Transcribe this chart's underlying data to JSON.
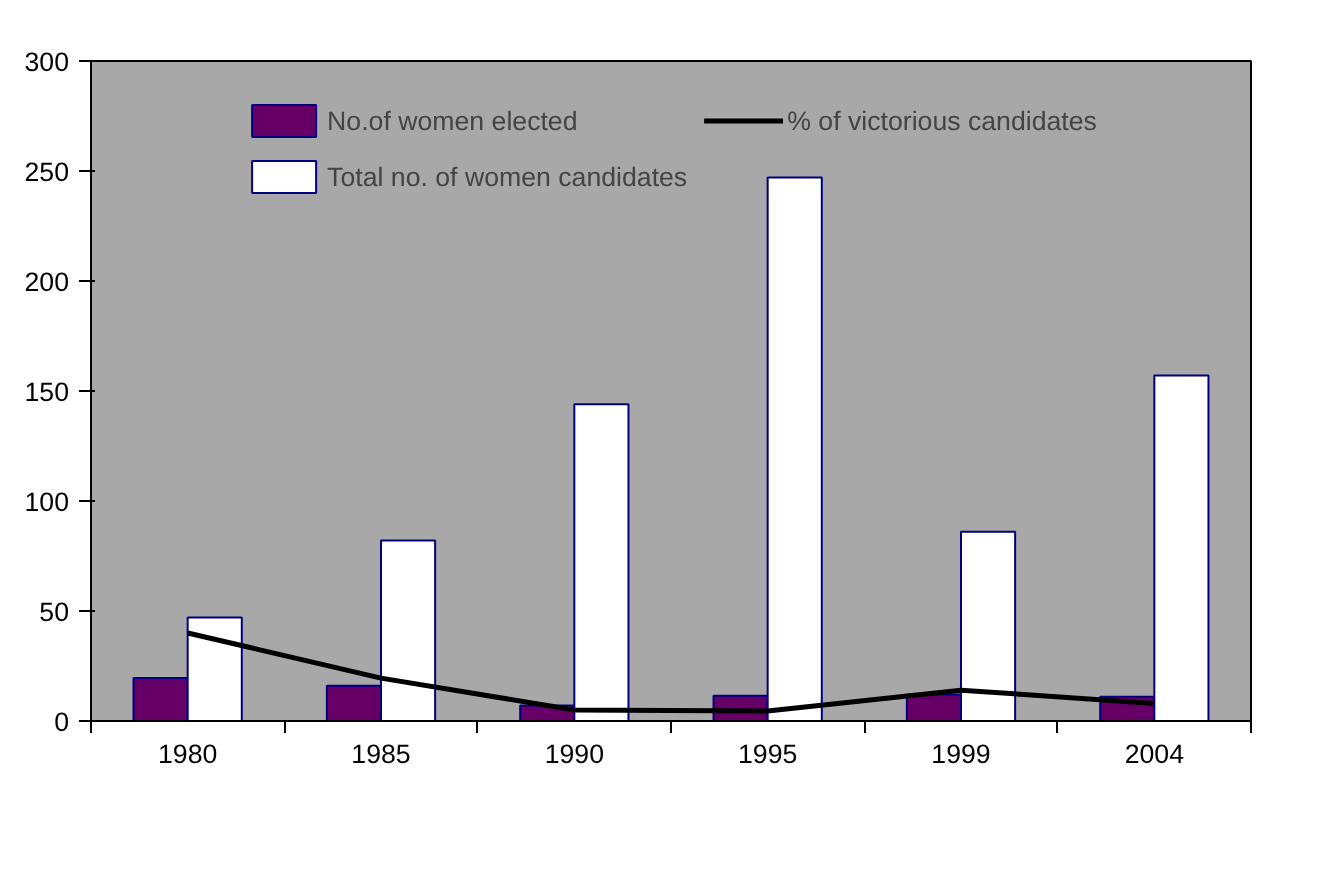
{
  "chart_data": {
    "type": "bar",
    "categories": [
      "1980",
      "1985",
      "1990",
      "1995",
      "1999",
      "2004"
    ],
    "series": [
      {
        "name": "No.of women elected",
        "color": "#660066",
        "values": [
          19.5,
          16,
          7,
          11.5,
          12,
          11
        ]
      },
      {
        "name": "Total no. of women candidates",
        "color": "#ffffff",
        "values": [
          47,
          82,
          144,
          247,
          86,
          157
        ]
      },
      {
        "name": "% of victorious candidates",
        "type": "line",
        "color": "#000000",
        "values": [
          40,
          19.5,
          5,
          4.5,
          14,
          8
        ]
      }
    ],
    "ylim": [
      0,
      300
    ],
    "yticks": [
      0,
      50,
      100,
      150,
      200,
      250,
      300
    ],
    "grid": false,
    "legend": "top",
    "marker": "none",
    "line_style": "solid"
  }
}
